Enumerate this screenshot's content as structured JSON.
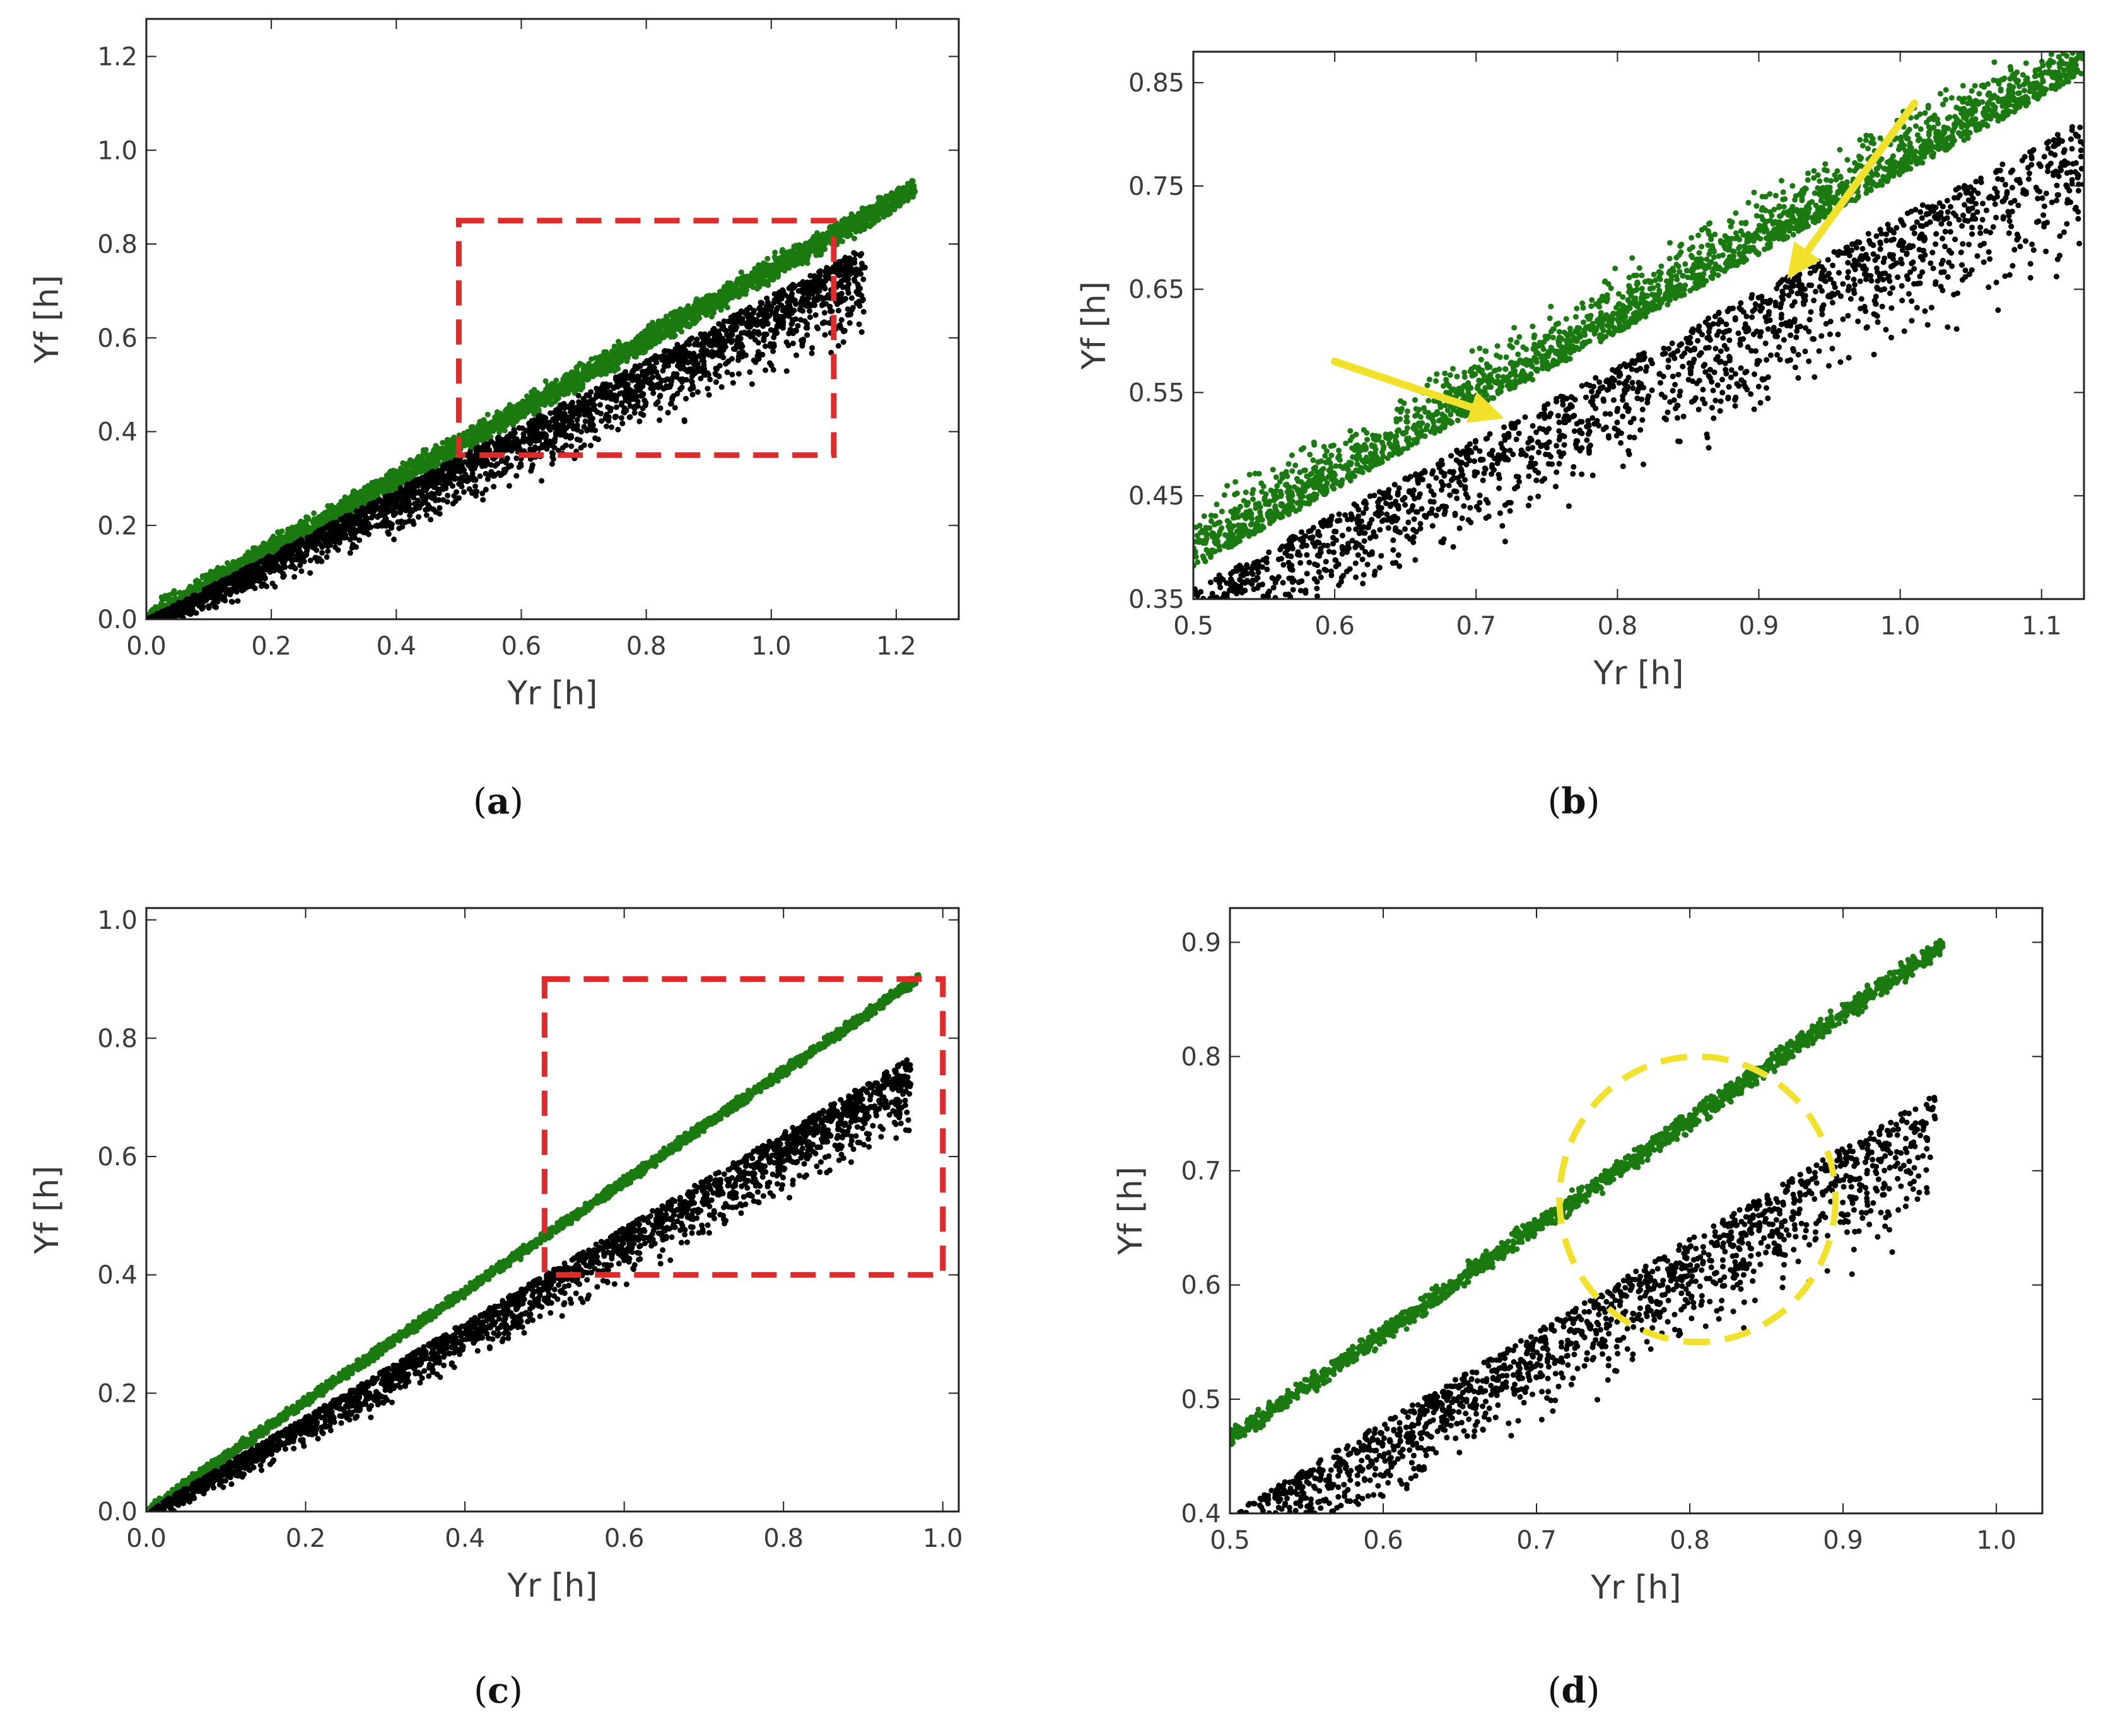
{
  "colors": {
    "green_series": "#1a7a10",
    "black_series": "#000000",
    "zoom_box": "#e32a2a",
    "highlight": "#f2e12a",
    "axes": "#222222"
  },
  "chart_data": [
    {
      "type": "scatter",
      "panel": "a",
      "caption": {
        "open": "(",
        "letter": "a",
        "close": ")"
      },
      "xlabel": "Yr [h]",
      "ylabel": "Yf [h]",
      "xlim": [
        0.0,
        1.3
      ],
      "ylim": [
        0.0,
        1.28
      ],
      "xticks": [
        0.0,
        0.2,
        0.4,
        0.6,
        0.8,
        1.0,
        1.2
      ],
      "xtick_labels": [
        "0.0",
        "0.2",
        "0.4",
        "0.6",
        "0.8",
        "1.0",
        "1.2"
      ],
      "yticks": [
        0.0,
        0.2,
        0.4,
        0.6,
        0.8,
        1.0,
        1.2
      ],
      "ytick_labels": [
        "0.0",
        "0.2",
        "0.4",
        "0.6",
        "0.8",
        "1.0",
        "1.2"
      ],
      "series": [
        {
          "name": "green",
          "color": "#1a7a10",
          "model": {
            "slope": 0.745,
            "spread": 0.035,
            "xmax": 1.23,
            "density": 3200,
            "bias": 0.0
          }
        },
        {
          "name": "black",
          "color": "#000000",
          "model": {
            "slope": 0.69,
            "spread": 0.16,
            "xmax": 1.15,
            "density": 2600,
            "bias": -1
          }
        }
      ],
      "zoom_box": {
        "x": [
          0.5,
          1.1
        ],
        "y": [
          0.35,
          0.85
        ]
      },
      "annotations": []
    },
    {
      "type": "scatter",
      "panel": "b",
      "caption": {
        "open": "(",
        "letter": "b",
        "close": ")"
      },
      "xlabel": "Yr [h]",
      "ylabel": "Yf [h]",
      "xlim": [
        0.5,
        1.13
      ],
      "ylim": [
        0.35,
        0.88
      ],
      "xticks": [
        0.5,
        0.6,
        0.7,
        0.8,
        0.9,
        1.0,
        1.1
      ],
      "xtick_labels": [
        "0.5",
        "0.6",
        "0.7",
        "0.8",
        "0.9",
        "1.0",
        "1.1"
      ],
      "yticks": [
        0.35,
        0.45,
        0.55,
        0.65,
        0.75,
        0.85
      ],
      "ytick_labels": [
        "0.35",
        "0.45",
        "0.55",
        "0.65",
        "0.75",
        "0.85"
      ],
      "series": [
        {
          "name": "green",
          "color": "#1a7a10",
          "model": {
            "slope": 0.76,
            "spread": 0.07,
            "xmax": 1.13,
            "density": 2400,
            "bias": 1
          }
        },
        {
          "name": "black",
          "color": "#000000",
          "model": {
            "slope": 0.72,
            "spread": 0.12,
            "xmax": 1.13,
            "density": 1700,
            "bias": -1
          }
        }
      ],
      "zoom_box": null,
      "annotations": [
        {
          "type": "arrow",
          "color": "#f2e12a",
          "from": [
            0.6,
            0.58
          ],
          "to": [
            0.72,
            0.525
          ]
        },
        {
          "type": "arrow",
          "color": "#f2e12a",
          "from": [
            1.01,
            0.83
          ],
          "to": [
            0.92,
            0.66
          ]
        }
      ]
    },
    {
      "type": "scatter",
      "panel": "c",
      "caption": {
        "open": "(",
        "letter": "c",
        "close": ")"
      },
      "xlabel": "Yr [h]",
      "ylabel": "Yf [h]",
      "xlim": [
        0.0,
        1.02
      ],
      "ylim": [
        0.0,
        1.02
      ],
      "xticks": [
        0.0,
        0.2,
        0.4,
        0.6,
        0.8,
        1.0
      ],
      "xtick_labels": [
        "0.0",
        "0.2",
        "0.4",
        "0.6",
        "0.8",
        "1.0"
      ],
      "yticks": [
        0.0,
        0.2,
        0.4,
        0.6,
        0.8,
        1.0
      ],
      "ytick_labels": [
        "0.0",
        "0.2",
        "0.4",
        "0.6",
        "0.8",
        "1.0"
      ],
      "series": [
        {
          "name": "green",
          "color": "#1a7a10",
          "model": {
            "slope": 0.93,
            "spread": 0.012,
            "xmax": 0.97,
            "density": 2600,
            "bias": 0
          }
        },
        {
          "name": "black",
          "color": "#000000",
          "model": {
            "slope": 0.8,
            "spread": 0.12,
            "xmax": 0.96,
            "density": 2400,
            "bias": -1
          }
        }
      ],
      "zoom_box": {
        "x": [
          0.5,
          1.0
        ],
        "y": [
          0.4,
          0.9
        ]
      },
      "annotations": []
    },
    {
      "type": "scatter",
      "panel": "d",
      "caption": {
        "open": "(",
        "letter": "d",
        "close": ")"
      },
      "xlabel": "Yr [h]",
      "ylabel": "Yf [h]",
      "xlim": [
        0.5,
        1.03
      ],
      "ylim": [
        0.4,
        0.93
      ],
      "xticks": [
        0.5,
        0.6,
        0.7,
        0.8,
        0.9,
        1.0
      ],
      "xtick_labels": [
        "0.5",
        "0.6",
        "0.7",
        "0.8",
        "0.9",
        "1.0"
      ],
      "yticks": [
        0.4,
        0.5,
        0.6,
        0.7,
        0.8,
        0.9
      ],
      "ytick_labels": [
        "0.4",
        "0.5",
        "0.6",
        "0.7",
        "0.8",
        "0.9"
      ],
      "series": [
        {
          "name": "green",
          "color": "#1a7a10",
          "model": {
            "slope": 0.93,
            "spread": 0.012,
            "xmax": 0.965,
            "density": 1600,
            "bias": 0
          }
        },
        {
          "name": "black",
          "color": "#000000",
          "model": {
            "slope": 0.8,
            "spread": 0.1,
            "xmax": 0.96,
            "density": 1500,
            "bias": -1
          }
        }
      ],
      "zoom_box": null,
      "annotations": [
        {
          "type": "ellipse",
          "color": "#f2e12a",
          "center": [
            0.805,
            0.675
          ],
          "radius_x": 0.09,
          "radius_y": 0.125
        }
      ]
    }
  ]
}
